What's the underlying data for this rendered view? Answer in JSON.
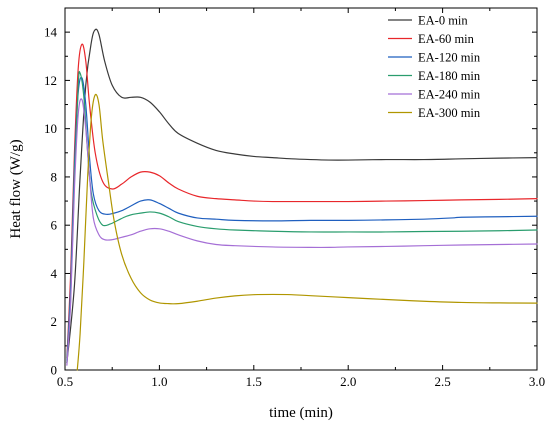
{
  "chart_data": {
    "type": "line",
    "xlabel": "time (min)",
    "ylabel": "Heat flow (W/g)",
    "xlim": [
      0.5,
      3.0
    ],
    "ylim": [
      0,
      15
    ],
    "xticks": [
      "0.5",
      "1.0",
      "1.5",
      "2.0",
      "2.5",
      "3.0"
    ],
    "yticks": [
      "0",
      "2",
      "4",
      "6",
      "8",
      "10",
      "12",
      "14"
    ],
    "grid": false,
    "legend_position": "top-right",
    "series": [
      {
        "name": "EA-0 min",
        "color": "#3a3a3a",
        "x": [
          0.51,
          0.55,
          0.58,
          0.61,
          0.64,
          0.66,
          0.68,
          0.71,
          0.75,
          0.8,
          0.85,
          0.9,
          0.95,
          1.0,
          1.05,
          1.1,
          1.2,
          1.3,
          1.4,
          1.5,
          1.6,
          1.7,
          1.8,
          1.9,
          2.0,
          2.2,
          2.4,
          2.6,
          2.8,
          3.0
        ],
        "y": [
          0.3,
          3.5,
          8.0,
          11.8,
          13.6,
          14.1,
          13.9,
          12.8,
          11.8,
          11.3,
          11.3,
          11.3,
          11.1,
          10.7,
          10.2,
          9.8,
          9.4,
          9.1,
          8.95,
          8.85,
          8.8,
          8.75,
          8.72,
          8.7,
          8.7,
          8.72,
          8.72,
          8.75,
          8.78,
          8.8
        ]
      },
      {
        "name": "EA-60 min",
        "color": "#e8272b",
        "x": [
          0.51,
          0.53,
          0.55,
          0.57,
          0.59,
          0.61,
          0.63,
          0.66,
          0.7,
          0.75,
          0.8,
          0.85,
          0.9,
          0.95,
          1.0,
          1.05,
          1.1,
          1.2,
          1.3,
          1.4,
          1.5,
          1.6,
          1.8,
          2.0,
          2.2,
          2.4,
          2.6,
          2.8,
          3.0
        ],
        "y": [
          0.5,
          4.0,
          9.0,
          12.5,
          13.5,
          12.8,
          11.0,
          9.0,
          7.8,
          7.5,
          7.7,
          8.0,
          8.2,
          8.2,
          8.05,
          7.75,
          7.5,
          7.2,
          7.1,
          7.05,
          7.0,
          6.98,
          6.98,
          6.98,
          7.0,
          7.02,
          7.05,
          7.07,
          7.1
        ]
      },
      {
        "name": "EA-120 min",
        "color": "#1f5fbf",
        "x": [
          0.51,
          0.53,
          0.55,
          0.57,
          0.59,
          0.61,
          0.63,
          0.65,
          0.68,
          0.72,
          0.76,
          0.8,
          0.85,
          0.9,
          0.95,
          1.0,
          1.05,
          1.1,
          1.2,
          1.3,
          1.4,
          1.6,
          1.8,
          2.0,
          2.2,
          2.4,
          2.55,
          2.6,
          2.8,
          3.0
        ],
        "y": [
          0.4,
          3.5,
          8.5,
          11.5,
          12.1,
          11.0,
          8.8,
          7.3,
          6.6,
          6.45,
          6.5,
          6.6,
          6.8,
          7.0,
          7.05,
          6.9,
          6.7,
          6.5,
          6.3,
          6.25,
          6.2,
          6.18,
          6.2,
          6.2,
          6.22,
          6.25,
          6.3,
          6.33,
          6.35,
          6.37
        ]
      },
      {
        "name": "EA-180 min",
        "color": "#2a9d6e",
        "x": [
          0.51,
          0.53,
          0.55,
          0.57,
          0.58,
          0.6,
          0.62,
          0.64,
          0.67,
          0.7,
          0.74,
          0.78,
          0.82,
          0.86,
          0.9,
          0.95,
          1.0,
          1.05,
          1.1,
          1.2,
          1.3,
          1.4,
          1.6,
          1.8,
          2.0,
          2.2,
          2.4,
          2.6,
          2.8,
          3.0
        ],
        "y": [
          0.3,
          3.0,
          8.0,
          11.8,
          12.3,
          11.3,
          9.0,
          7.3,
          6.4,
          6.0,
          6.05,
          6.2,
          6.35,
          6.45,
          6.5,
          6.55,
          6.5,
          6.35,
          6.15,
          5.95,
          5.85,
          5.8,
          5.75,
          5.72,
          5.72,
          5.72,
          5.74,
          5.75,
          5.77,
          5.8
        ]
      },
      {
        "name": "EA-240 min",
        "color": "#a56fd6",
        "x": [
          0.51,
          0.53,
          0.55,
          0.57,
          0.59,
          0.61,
          0.63,
          0.65,
          0.68,
          0.71,
          0.75,
          0.8,
          0.85,
          0.9,
          0.95,
          1.0,
          1.05,
          1.1,
          1.2,
          1.3,
          1.4,
          1.6,
          1.8,
          1.9,
          2.0,
          2.2,
          2.4,
          2.6,
          2.8,
          3.0
        ],
        "y": [
          0.2,
          2.8,
          7.5,
          10.6,
          11.2,
          10.0,
          8.0,
          6.3,
          5.6,
          5.4,
          5.4,
          5.5,
          5.6,
          5.75,
          5.85,
          5.85,
          5.75,
          5.6,
          5.35,
          5.2,
          5.15,
          5.1,
          5.08,
          5.08,
          5.1,
          5.12,
          5.15,
          5.18,
          5.2,
          5.22
        ]
      },
      {
        "name": "EA-300 min",
        "color": "#b09600",
        "x": [
          0.565,
          0.58,
          0.6,
          0.62,
          0.64,
          0.66,
          0.68,
          0.7,
          0.73,
          0.76,
          0.8,
          0.85,
          0.9,
          0.95,
          1.0,
          1.05,
          1.1,
          1.2,
          1.3,
          1.4,
          1.5,
          1.6,
          1.7,
          1.8,
          2.0,
          2.2,
          2.4,
          2.6,
          2.8,
          3.0
        ],
        "y": [
          0.0,
          1.5,
          4.5,
          8.0,
          10.5,
          11.4,
          11.0,
          9.5,
          7.8,
          6.2,
          4.8,
          3.8,
          3.2,
          2.9,
          2.78,
          2.75,
          2.75,
          2.85,
          2.98,
          3.07,
          3.12,
          3.13,
          3.12,
          3.08,
          3.0,
          2.92,
          2.85,
          2.8,
          2.78,
          2.77
        ]
      }
    ]
  }
}
